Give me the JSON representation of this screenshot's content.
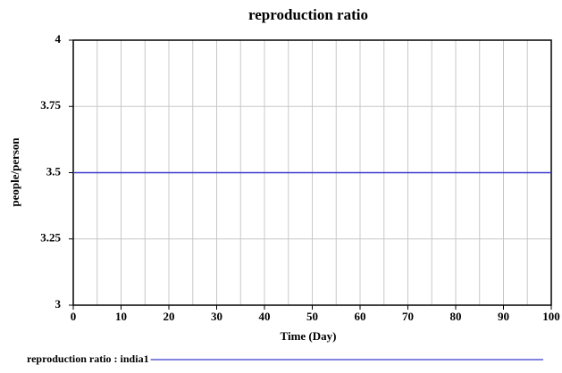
{
  "chart_data": {
    "type": "line",
    "title": "reproduction ratio",
    "x_label": "Time (Day)",
    "y_label": "people/person",
    "x": [
      0,
      100
    ],
    "series": [
      {
        "name": "reproduction ratio : india1",
        "color": "#3a3acc",
        "values": [
          3.5,
          3.5
        ]
      }
    ],
    "xlim": [
      0,
      100
    ],
    "xticks": [
      0,
      10,
      20,
      30,
      40,
      50,
      60,
      70,
      80,
      90,
      100
    ],
    "ylim": [
      3,
      4
    ],
    "yticks": [
      3,
      3.25,
      3.5,
      3.75,
      4
    ],
    "grid": true
  }
}
